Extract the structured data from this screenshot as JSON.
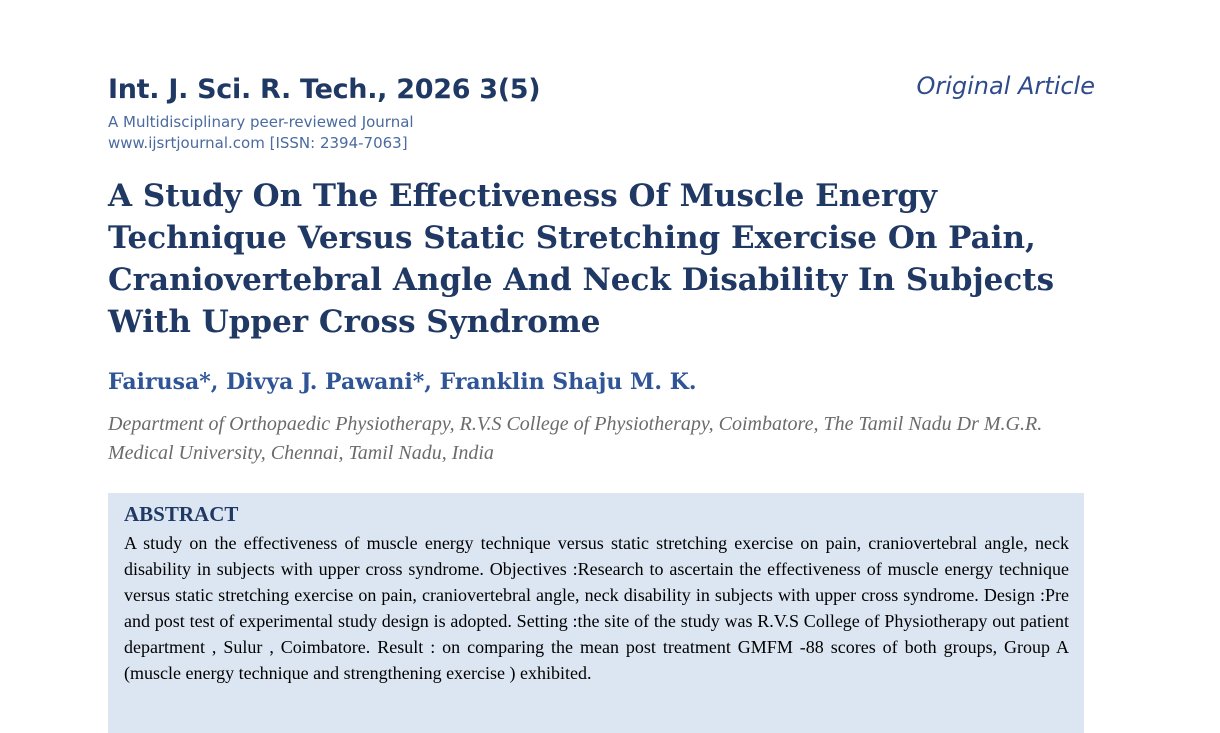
{
  "header": {
    "journal": "Int. J. Sci. R. Tech., 2026 3(5)",
    "tagline": "A Multidisciplinary peer-reviewed Journal",
    "website": "www.ijsrtjournal.com [ISSN: 2394-7063]",
    "article_type": "Original Article"
  },
  "title": "A Study On The Effectiveness Of Muscle Energy Technique Versus Static Stretching Exercise On Pain, Craniovertebral Angle And Neck Disability In Subjects With Upper Cross Syndrome",
  "authors": "Fairusa*, Divya J. Pawani*, Franklin Shaju M. K.",
  "affiliation": "Department of Orthopaedic Physiotherapy, R.V.S College of Physiotherapy, Coimbatore, The Tamil Nadu Dr M.G.R. Medical University, Chennai, Tamil Nadu, India",
  "abstract": {
    "heading": "ABSTRACT",
    "text": "A study on the effectiveness of muscle energy technique versus static stretching exercise on pain, craniovertebral angle, neck disability in subjects with upper cross syndrome. Objectives :Research to ascertain  the effectiveness of muscle energy technique versus static stretching exercise on pain, craniovertebral angle, neck disability in subjects with upper cross syndrome. Design :Pre and post test of experimental study design is adopted. Setting :the site of the study was R.V.S College of Physiotherapy out patient department , Sulur , Coimbatore. Result : on comparing the mean post treatment GMFM -88 scores of both groups, Group A (muscle energy technique and strengthening exercise ) exhibited."
  }
}
